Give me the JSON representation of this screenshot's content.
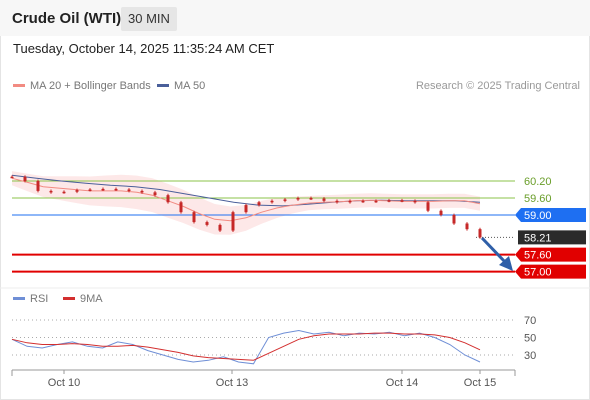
{
  "header": {
    "title": "Crude Oil (WTI)",
    "interval": "30 MIN"
  },
  "timestamp": "Tuesday, October 14, 2025 11:35:24 AM CET",
  "legend": {
    "ma20_bb": "MA 20 + Bollinger Bands",
    "ma50": "MA 50",
    "rsi": "RSI",
    "nine_ma": "9MA",
    "credit": "Research © 2025 Trading Central"
  },
  "colors": {
    "ma20": "#f28b82",
    "ma50": "#4a5f9a",
    "band": "#fde2e2",
    "candle": "#c62828",
    "resistance": "#8bc34a",
    "pivot": "#1e6ff2",
    "support": "#e10000",
    "rsi": "#6f8fd6",
    "rsi_ma": "#d32f2f",
    "price_tag": "#2b2b2b",
    "arrow": "#2f5fa8"
  },
  "chart_data": [
    {
      "type": "line",
      "title": "Crude Oil (WTI)",
      "xlabel": "",
      "ylabel": "",
      "x_ticks": [
        "Oct 10",
        "Oct 13",
        "Oct 14",
        "Oct 15"
      ],
      "ylim": [
        56.8,
        60.5
      ],
      "series": [
        {
          "name": "Crude Oil (WTI)",
          "values": [
            60.35,
            60.2,
            59.85,
            59.8,
            59.82,
            59.88,
            59.9,
            59.92,
            59.9,
            59.85,
            59.8,
            59.7,
            59.45,
            59.1,
            58.75,
            58.65,
            58.45,
            59.1,
            59.35,
            59.45,
            59.5,
            59.55,
            59.6,
            59.58,
            59.5,
            59.45,
            59.5,
            59.48,
            59.5,
            59.52,
            59.5,
            59.45,
            59.15,
            59.0,
            58.7,
            58.5,
            58.21
          ]
        },
        {
          "name": "MA 20 + Bollinger Bands",
          "values": [
            60.3,
            60.15,
            60.0,
            59.95,
            59.9,
            59.85,
            59.85,
            59.85,
            59.8,
            59.7,
            59.5,
            59.3,
            59.05,
            58.85,
            58.8,
            58.9,
            59.1,
            59.25,
            59.35,
            59.42,
            59.45,
            59.47,
            59.5,
            59.52,
            59.5,
            59.48,
            59.48,
            59.48,
            59.5,
            59.5,
            59.4
          ]
        },
        {
          "name": "MA 50",
          "values": [
            60.4,
            60.3,
            60.2,
            60.12,
            60.05,
            60.0,
            59.9,
            59.75,
            59.6,
            59.45,
            59.35,
            59.32,
            59.38,
            59.45,
            59.5,
            59.52,
            59.5,
            59.5,
            59.5,
            59.45
          ]
        }
      ],
      "levels": [
        {
          "value": 60.2,
          "label": "60.20",
          "role": "resistance"
        },
        {
          "value": 59.6,
          "label": "59.60",
          "role": "resistance"
        },
        {
          "value": 59.0,
          "label": "59.00",
          "role": "pivot"
        },
        {
          "value": 58.21,
          "label": "58.21",
          "role": "last"
        },
        {
          "value": 57.6,
          "label": "57.60",
          "role": "support"
        },
        {
          "value": 57.0,
          "label": "57.00",
          "role": "support"
        }
      ]
    },
    {
      "type": "line",
      "title": "",
      "ylim": [
        15,
        80
      ],
      "y_ticks": [
        70,
        50,
        30
      ],
      "series": [
        {
          "name": "RSI",
          "values": [
            48,
            40,
            38,
            42,
            45,
            40,
            38,
            45,
            42,
            35,
            30,
            25,
            22,
            24,
            28,
            22,
            20,
            50,
            55,
            58,
            54,
            56,
            52,
            55,
            54,
            56,
            52,
            55,
            50,
            42,
            30,
            22
          ]
        },
        {
          "name": "9MA",
          "values": [
            48,
            44,
            42,
            42,
            43,
            42,
            40,
            40,
            41,
            39,
            36,
            33,
            29,
            27,
            26,
            25,
            24,
            32,
            40,
            48,
            52,
            54,
            54,
            54,
            55,
            55,
            54,
            54,
            53,
            50,
            44,
            36
          ]
        }
      ]
    }
  ]
}
